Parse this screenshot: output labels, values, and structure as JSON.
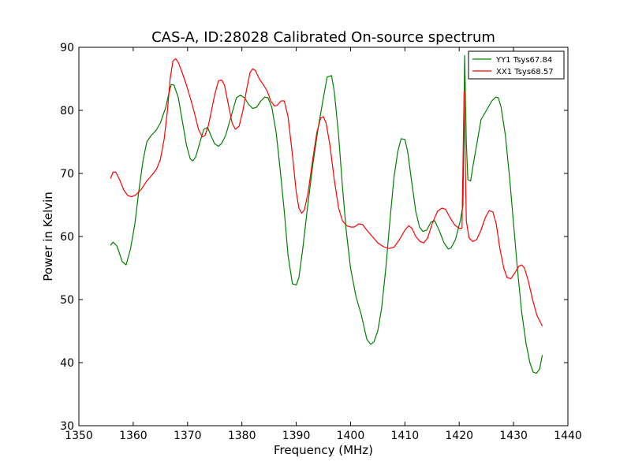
{
  "chart_data": {
    "type": "line",
    "title": "CAS-A, ID:28028 Calibrated On-source spectrum",
    "xlabel": "Frequency (MHz)",
    "ylabel": "Power in Kelvin",
    "xlim": [
      1350,
      1440
    ],
    "ylim": [
      30,
      90
    ],
    "xticks": [
      1350,
      1360,
      1370,
      1380,
      1390,
      1400,
      1410,
      1420,
      1430,
      1440
    ],
    "yticks": [
      30,
      40,
      50,
      60,
      70,
      80,
      90
    ],
    "grid": false,
    "legend_position": "top-right",
    "series": [
      {
        "name": "YY1 Tsys67.84",
        "color": "#008000",
        "points": [
          [
            1355.8,
            58.6
          ],
          [
            1356.3,
            59.1
          ],
          [
            1357,
            58.5
          ],
          [
            1358,
            56
          ],
          [
            1358.7,
            55.5
          ],
          [
            1359.5,
            58
          ],
          [
            1360.3,
            62
          ],
          [
            1361,
            67
          ],
          [
            1361.8,
            72
          ],
          [
            1362.5,
            75
          ],
          [
            1363.3,
            76
          ],
          [
            1364.2,
            76.8
          ],
          [
            1365,
            78
          ],
          [
            1366,
            80.5
          ],
          [
            1366.5,
            82.5
          ],
          [
            1367,
            84.1
          ],
          [
            1367.5,
            84
          ],
          [
            1368.3,
            82
          ],
          [
            1369,
            78.5
          ],
          [
            1369.8,
            74.5
          ],
          [
            1370.5,
            72.3
          ],
          [
            1371,
            72
          ],
          [
            1371.5,
            72.6
          ],
          [
            1372.3,
            75
          ],
          [
            1373,
            77
          ],
          [
            1373.7,
            77.3
          ],
          [
            1374.3,
            76
          ],
          [
            1375,
            74.7
          ],
          [
            1375.7,
            74.3
          ],
          [
            1376.3,
            74.8
          ],
          [
            1377,
            76
          ],
          [
            1378,
            79
          ],
          [
            1379,
            82
          ],
          [
            1379.7,
            82.4
          ],
          [
            1380.5,
            82
          ],
          [
            1381.2,
            81
          ],
          [
            1382,
            80.3
          ],
          [
            1382.7,
            80.5
          ],
          [
            1383.5,
            81.5
          ],
          [
            1384.2,
            82.1
          ],
          [
            1384.8,
            82
          ],
          [
            1385.5,
            80.5
          ],
          [
            1386.3,
            76.5
          ],
          [
            1387,
            71
          ],
          [
            1387.8,
            64
          ],
          [
            1388.5,
            57
          ],
          [
            1389.3,
            52.5
          ],
          [
            1390,
            52.3
          ],
          [
            1390.5,
            53.5
          ],
          [
            1391.2,
            58
          ],
          [
            1392,
            64
          ],
          [
            1393,
            71
          ],
          [
            1394,
            77
          ],
          [
            1395,
            82
          ],
          [
            1395.7,
            85.3
          ],
          [
            1396.5,
            85.5
          ],
          [
            1397,
            83
          ],
          [
            1397.8,
            76
          ],
          [
            1398.5,
            68
          ],
          [
            1399.2,
            61
          ],
          [
            1400,
            55
          ],
          [
            1401,
            50.5
          ],
          [
            1402,
            47.5
          ],
          [
            1403,
            43.7
          ],
          [
            1403.7,
            42.9
          ],
          [
            1404.3,
            43.3
          ],
          [
            1405,
            45
          ],
          [
            1405.7,
            48.5
          ],
          [
            1406.5,
            55
          ],
          [
            1407.3,
            63
          ],
          [
            1408,
            69.5
          ],
          [
            1408.7,
            73.5
          ],
          [
            1409.3,
            75.5
          ],
          [
            1410,
            75.4
          ],
          [
            1410.5,
            73.5
          ],
          [
            1411.2,
            69
          ],
          [
            1412,
            64
          ],
          [
            1412.7,
            61.5
          ],
          [
            1413.3,
            60.8
          ],
          [
            1414,
            61
          ],
          [
            1414.8,
            62.3
          ],
          [
            1415.5,
            62.5
          ],
          [
            1416.3,
            61
          ],
          [
            1417.2,
            59
          ],
          [
            1418,
            58
          ],
          [
            1418.5,
            58.2
          ],
          [
            1419.3,
            59.5
          ],
          [
            1420.2,
            62.5
          ],
          [
            1420.7,
            65
          ],
          [
            1421,
            88.7
          ],
          [
            1421.3,
            75
          ],
          [
            1421.6,
            69
          ],
          [
            1422.1,
            68.8
          ],
          [
            1422.5,
            71
          ],
          [
            1423.3,
            75
          ],
          [
            1424,
            78.5
          ],
          [
            1425,
            80
          ],
          [
            1426,
            81.5
          ],
          [
            1426.7,
            82.1
          ],
          [
            1427.2,
            82
          ],
          [
            1427.7,
            80.5
          ],
          [
            1428.5,
            76
          ],
          [
            1429.3,
            69
          ],
          [
            1430,
            62
          ],
          [
            1430.7,
            55
          ],
          [
            1431.5,
            48
          ],
          [
            1432.3,
            43
          ],
          [
            1433,
            40
          ],
          [
            1433.6,
            38.5
          ],
          [
            1434.2,
            38.3
          ],
          [
            1434.8,
            39
          ],
          [
            1435.3,
            41.2
          ]
        ]
      },
      {
        "name": "XX1 Tsys68.57",
        "color": "#ff0000",
        "points": [
          [
            1355.8,
            69.2
          ],
          [
            1356.3,
            70.2
          ],
          [
            1356.8,
            70.2
          ],
          [
            1357.5,
            69
          ],
          [
            1358.3,
            67.3
          ],
          [
            1359,
            66.5
          ],
          [
            1359.7,
            66.3
          ],
          [
            1360.5,
            66.6
          ],
          [
            1361.5,
            67.5
          ],
          [
            1362.5,
            68.8
          ],
          [
            1363.5,
            69.8
          ],
          [
            1364.3,
            70.7
          ],
          [
            1365,
            72.2
          ],
          [
            1365.7,
            75.5
          ],
          [
            1366.3,
            80
          ],
          [
            1366.8,
            85
          ],
          [
            1367.3,
            87.8
          ],
          [
            1367.8,
            88.2
          ],
          [
            1368.3,
            87.6
          ],
          [
            1369,
            86
          ],
          [
            1369.8,
            84
          ],
          [
            1370.5,
            82
          ],
          [
            1371.3,
            79.5
          ],
          [
            1372,
            77
          ],
          [
            1372.7,
            75.8
          ],
          [
            1373.2,
            76
          ],
          [
            1373.8,
            77.5
          ],
          [
            1374.3,
            79.5
          ],
          [
            1375,
            82.5
          ],
          [
            1375.7,
            84.7
          ],
          [
            1376.3,
            84.8
          ],
          [
            1376.8,
            84
          ],
          [
            1377.5,
            81
          ],
          [
            1378.2,
            78
          ],
          [
            1378.8,
            77
          ],
          [
            1379.5,
            77.5
          ],
          [
            1380.2,
            80
          ],
          [
            1380.8,
            83
          ],
          [
            1381.5,
            86
          ],
          [
            1382,
            86.6
          ],
          [
            1382.5,
            86.3
          ],
          [
            1383.2,
            85
          ],
          [
            1384,
            84
          ],
          [
            1384.7,
            83
          ],
          [
            1385.3,
            81.5
          ],
          [
            1386,
            80.7
          ],
          [
            1386.5,
            80.8
          ],
          [
            1387.2,
            81.5
          ],
          [
            1387.8,
            81.5
          ],
          [
            1388.5,
            79
          ],
          [
            1389.3,
            73
          ],
          [
            1390,
            67
          ],
          [
            1390.5,
            64.5
          ],
          [
            1391,
            63.7
          ],
          [
            1391.5,
            64.2
          ],
          [
            1392.2,
            67
          ],
          [
            1393,
            72
          ],
          [
            1393.8,
            76.5
          ],
          [
            1394.5,
            78.8
          ],
          [
            1395,
            79
          ],
          [
            1395.5,
            78
          ],
          [
            1396.2,
            74.5
          ],
          [
            1397,
            69
          ],
          [
            1397.8,
            64.5
          ],
          [
            1398.5,
            62.5
          ],
          [
            1399.3,
            61.7
          ],
          [
            1400,
            61.5
          ],
          [
            1400.7,
            61.5
          ],
          [
            1401.5,
            62
          ],
          [
            1402.2,
            61.9
          ],
          [
            1403,
            61
          ],
          [
            1404,
            60
          ],
          [
            1405,
            59
          ],
          [
            1406,
            58.4
          ],
          [
            1407,
            58.1
          ],
          [
            1408,
            58.3
          ],
          [
            1409,
            59.5
          ],
          [
            1410,
            61
          ],
          [
            1410.7,
            61.7
          ],
          [
            1411.3,
            61.3
          ],
          [
            1412,
            60
          ],
          [
            1412.8,
            59.2
          ],
          [
            1413.5,
            59
          ],
          [
            1414.2,
            59.8
          ],
          [
            1415,
            62
          ],
          [
            1416,
            64
          ],
          [
            1416.8,
            64.5
          ],
          [
            1417.5,
            64.3
          ],
          [
            1418.3,
            63
          ],
          [
            1419.2,
            61.8
          ],
          [
            1420,
            61.3
          ],
          [
            1420.5,
            61.3
          ],
          [
            1420.9,
            83
          ],
          [
            1421.3,
            62.5
          ],
          [
            1421.8,
            59.8
          ],
          [
            1422.5,
            59.2
          ],
          [
            1423.2,
            59.5
          ],
          [
            1424,
            61
          ],
          [
            1424.8,
            63
          ],
          [
            1425.5,
            64.1
          ],
          [
            1426.2,
            63.9
          ],
          [
            1426.8,
            62
          ],
          [
            1427.5,
            58
          ],
          [
            1428.2,
            55
          ],
          [
            1428.8,
            53.5
          ],
          [
            1429.5,
            53.3
          ],
          [
            1430.2,
            54.2
          ],
          [
            1431,
            55.3
          ],
          [
            1431.5,
            55.5
          ],
          [
            1432,
            55
          ],
          [
            1432.7,
            53
          ],
          [
            1433.5,
            50
          ],
          [
            1434.3,
            47.5
          ],
          [
            1435,
            46.3
          ],
          [
            1435.3,
            45.8
          ]
        ]
      }
    ]
  }
}
